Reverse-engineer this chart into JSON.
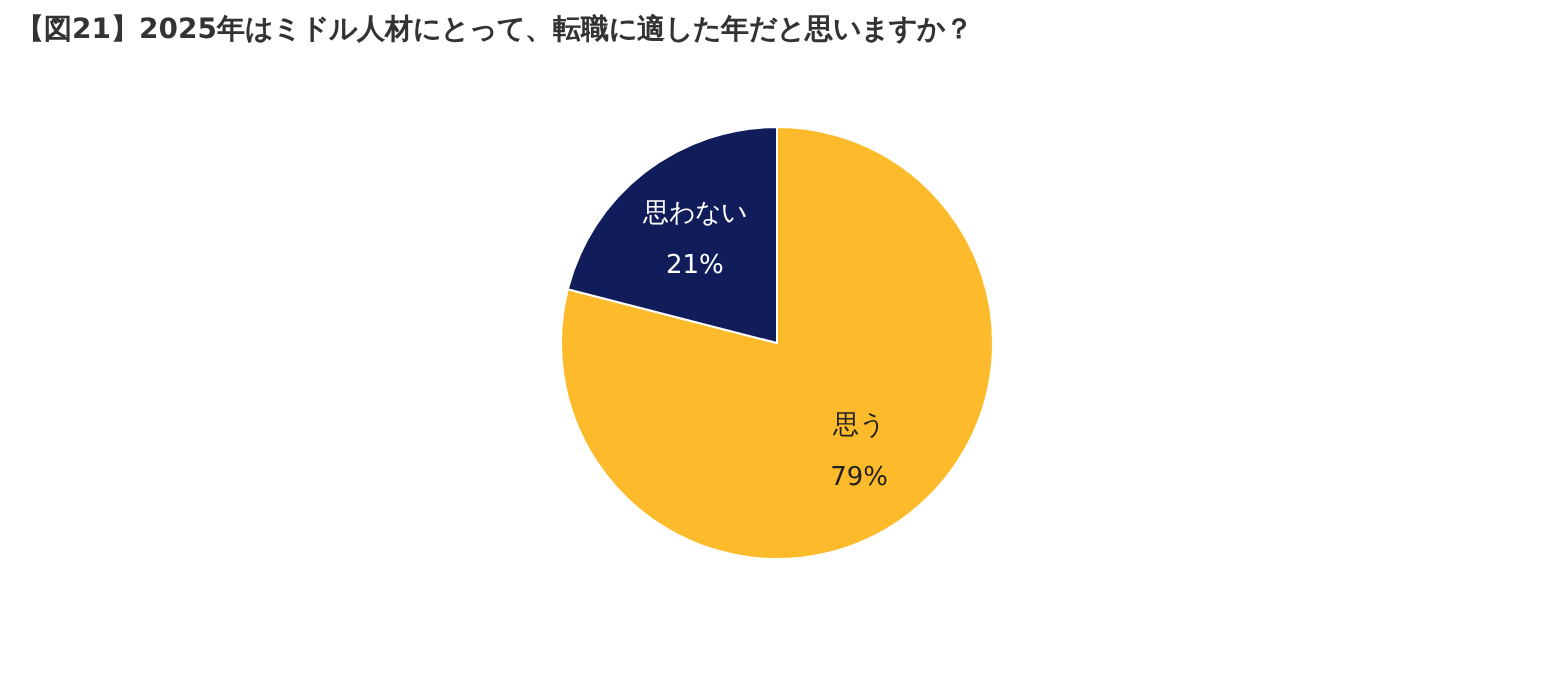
{
  "chart_data": {
    "type": "pie",
    "title": "【図21】2025年はミドル人材にとって、転職に適した年だと思いますか？",
    "categories": [
      "思う",
      "思わない"
    ],
    "values": [
      79,
      21
    ],
    "colors": [
      "#fdbb2b",
      "#111d5a"
    ],
    "value_labels": [
      "79%",
      "21%"
    ],
    "legend": false
  }
}
